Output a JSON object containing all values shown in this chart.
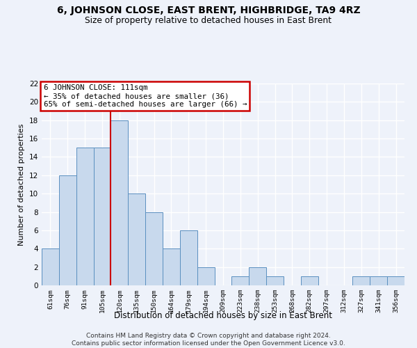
{
  "title": "6, JOHNSON CLOSE, EAST BRENT, HIGHBRIDGE, TA9 4RZ",
  "subtitle": "Size of property relative to detached houses in East Brent",
  "xlabel": "Distribution of detached houses by size in East Brent",
  "ylabel": "Number of detached properties",
  "categories": [
    "61sqm",
    "76sqm",
    "91sqm",
    "105sqm",
    "120sqm",
    "135sqm",
    "150sqm",
    "164sqm",
    "179sqm",
    "194sqm",
    "209sqm",
    "223sqm",
    "238sqm",
    "253sqm",
    "268sqm",
    "282sqm",
    "297sqm",
    "312sqm",
    "327sqm",
    "341sqm",
    "356sqm"
  ],
  "values": [
    4,
    12,
    15,
    15,
    18,
    10,
    8,
    4,
    6,
    2,
    0,
    1,
    2,
    1,
    0,
    1,
    0,
    0,
    1,
    1,
    1
  ],
  "bar_color": "#c8d9ed",
  "bar_edge_color": "#5a8fc0",
  "background_color": "#eef2fa",
  "grid_color": "#ffffff",
  "annotation_title": "6 JOHNSON CLOSE: 111sqm",
  "annotation_line1": "← 35% of detached houses are smaller (36)",
  "annotation_line2": "65% of semi-detached houses are larger (66) →",
  "vline_index": 3.5,
  "ylim": [
    0,
    22
  ],
  "yticks": [
    0,
    2,
    4,
    6,
    8,
    10,
    12,
    14,
    16,
    18,
    20,
    22
  ],
  "footer1": "Contains HM Land Registry data © Crown copyright and database right 2024.",
  "footer2": "Contains public sector information licensed under the Open Government Licence v3.0.",
  "annotation_box_color": "#ffffff",
  "annotation_box_edge": "#cc0000",
  "vline_color": "#cc0000"
}
